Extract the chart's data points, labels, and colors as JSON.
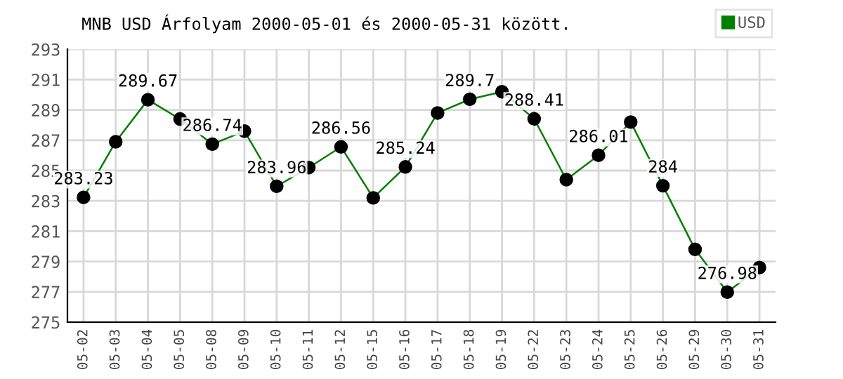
{
  "chart_data": {
    "type": "line",
    "title": "MNB USD Árfolyam 2000-05-01 és 2000-05-31 között.",
    "categories": [
      "05-02",
      "05-03",
      "05-04",
      "05-05",
      "05-08",
      "05-09",
      "05-10",
      "05-11",
      "05-12",
      "05-15",
      "05-16",
      "05-17",
      "05-18",
      "05-19",
      "05-22",
      "05-23",
      "05-24",
      "05-25",
      "05-26",
      "05-29",
      "05-30",
      "05-31"
    ],
    "series": [
      {
        "name": "USD",
        "color": "#008000",
        "values": [
          283.23,
          286.9,
          289.67,
          288.4,
          286.74,
          287.6,
          283.96,
          285.2,
          286.56,
          283.2,
          285.24,
          288.8,
          289.7,
          290.2,
          288.41,
          284.4,
          286.01,
          288.2,
          284,
          279.8,
          276.98,
          278.6
        ],
        "value_labels": [
          "283.23",
          null,
          "289.67",
          null,
          "286.74",
          null,
          "283.96",
          null,
          "286.56",
          null,
          "285.24",
          null,
          "289.7",
          null,
          "288.41",
          null,
          "286.01",
          null,
          "284",
          null,
          "276.98",
          null
        ]
      }
    ],
    "ylim": [
      275,
      293
    ],
    "yticks": [
      275,
      277,
      279,
      281,
      283,
      285,
      287,
      289,
      291,
      293
    ],
    "grid": true,
    "legend": "top right",
    "marker": "circle",
    "line_style": "solid"
  }
}
